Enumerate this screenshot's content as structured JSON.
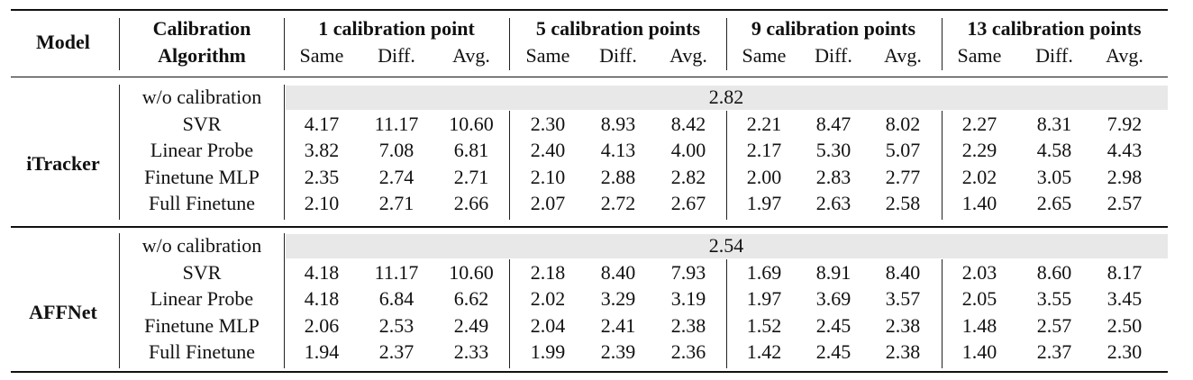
{
  "table": {
    "header": {
      "model_label": "Model",
      "algo_label_line1": "Calibration",
      "algo_label_line2": "Algorithm",
      "groups": [
        "1 calibration point",
        "5 calibration points",
        "9 calibration points",
        "13 calibration points"
      ],
      "subcols": [
        "Same",
        "Diff.",
        "Avg."
      ]
    },
    "blocks": [
      {
        "model": "iTracker",
        "baseline_label": "w/o calibration",
        "baseline_value": "2.82",
        "rows": [
          {
            "algo": "SVR",
            "values": [
              "4.17",
              "11.17",
              "10.60",
              "2.30",
              "8.93",
              "8.42",
              "2.21",
              "8.47",
              "8.02",
              "2.27",
              "8.31",
              "7.92"
            ]
          },
          {
            "algo": "Linear Probe",
            "values": [
              "3.82",
              "7.08",
              "6.81",
              "2.40",
              "4.13",
              "4.00",
              "2.17",
              "5.30",
              "5.07",
              "2.29",
              "4.58",
              "4.43"
            ]
          },
          {
            "algo": "Finetune MLP",
            "values": [
              "2.35",
              "2.74",
              "2.71",
              "2.10",
              "2.88",
              "2.82",
              "2.00",
              "2.83",
              "2.77",
              "2.02",
              "3.05",
              "2.98"
            ]
          },
          {
            "algo": "Full Finetune",
            "values": [
              "2.10",
              "2.71",
              "2.66",
              "2.07",
              "2.72",
              "2.67",
              "1.97",
              "2.63",
              "2.58",
              "1.40",
              "2.65",
              "2.57"
            ]
          }
        ]
      },
      {
        "model": "AFFNet",
        "baseline_label": "w/o calibration",
        "baseline_value": "2.54",
        "rows": [
          {
            "algo": "SVR",
            "values": [
              "4.18",
              "11.17",
              "10.60",
              "2.18",
              "8.40",
              "7.93",
              "1.69",
              "8.91",
              "8.40",
              "2.03",
              "8.60",
              "8.17"
            ]
          },
          {
            "algo": "Linear Probe",
            "values": [
              "4.18",
              "6.84",
              "6.62",
              "2.02",
              "3.29",
              "3.19",
              "1.97",
              "3.69",
              "3.57",
              "2.05",
              "3.55",
              "3.45"
            ]
          },
          {
            "algo": "Finetune MLP",
            "values": [
              "2.06",
              "2.53",
              "2.49",
              "2.04",
              "2.41",
              "2.38",
              "1.52",
              "2.45",
              "2.38",
              "1.48",
              "2.57",
              "2.50"
            ]
          },
          {
            "algo": "Full Finetune",
            "values": [
              "1.94",
              "2.37",
              "2.33",
              "1.99",
              "2.39",
              "2.36",
              "1.42",
              "2.45",
              "2.38",
              "1.40",
              "2.37",
              "2.30"
            ]
          }
        ]
      }
    ]
  }
}
